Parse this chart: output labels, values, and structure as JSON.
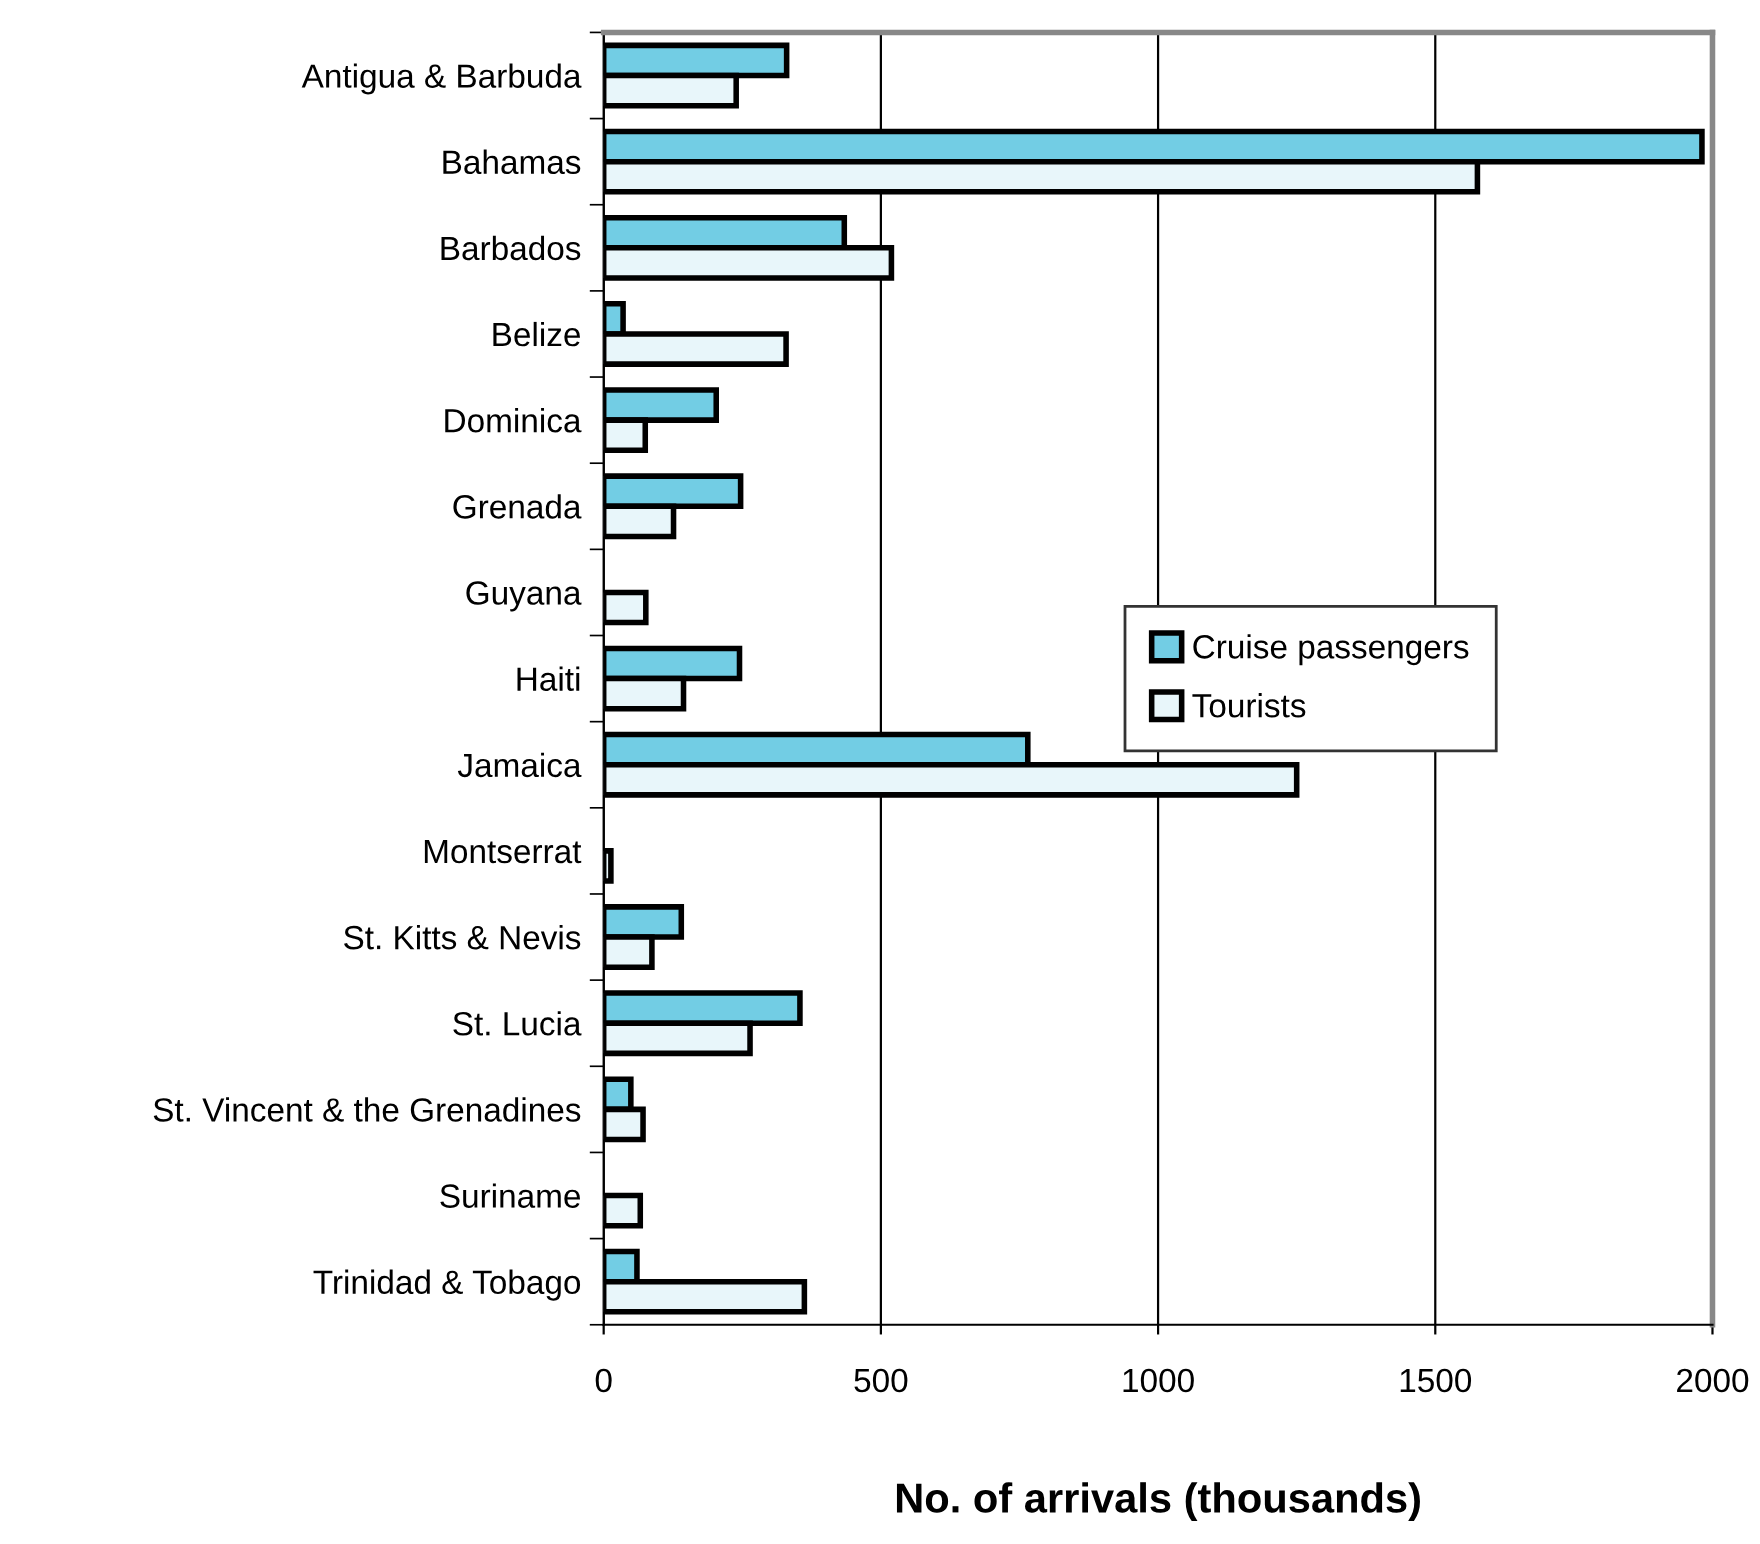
{
  "chart_data": {
    "type": "bar",
    "orientation": "horizontal",
    "xlabel": "No. of arrivals (thousands)",
    "categories": [
      "Antigua & Barbuda",
      "Bahamas",
      "Barbados",
      "Belize",
      "Dominica",
      "Grenada",
      "Guyana",
      "Haiti",
      "Jamaica",
      "Montserrat",
      "St. Kitts & Nevis",
      "St. Lucia",
      "St. Vincent & the Grenadines",
      "Suriname",
      "Trinidad & Tobago"
    ],
    "series": [
      {
        "name": "Cruise passengers",
        "color": "#72cde4",
        "values": [
          330,
          1981,
          434,
          35,
          203,
          247,
          null,
          245,
          765,
          null,
          140,
          354,
          49,
          null,
          60
        ]
      },
      {
        "name": "Tourists",
        "color": "#e8f6fa",
        "values": [
          239,
          1576,
          519,
          329,
          75,
          126,
          76,
          144,
          1250,
          13,
          87,
          264,
          71,
          66,
          362
        ]
      }
    ],
    "xlim": [
      0,
      2000
    ],
    "xticks": [
      0,
      500,
      1000,
      1500,
      2000
    ],
    "grid": "x",
    "legend": "center right"
  }
}
